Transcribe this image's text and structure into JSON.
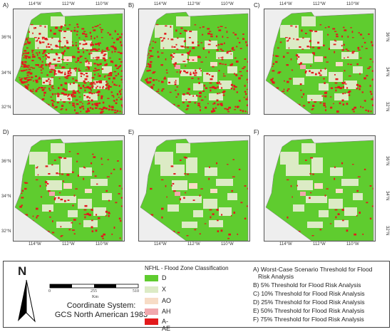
{
  "panels": [
    {
      "letter": "A)",
      "red_density": 1.0
    },
    {
      "letter": "B)",
      "red_density": 0.5
    },
    {
      "letter": "C)",
      "red_density": 0.35
    },
    {
      "letter": "D)",
      "red_density": 0.2
    },
    {
      "letter": "E)",
      "red_density": 0.1
    },
    {
      "letter": "F)",
      "red_density": 0.07
    }
  ],
  "axis_labels": {
    "lon": [
      "114°W",
      "112°W",
      "110°W"
    ],
    "lat": [
      "36°N",
      "34°N",
      "32°N"
    ]
  },
  "north_arrow": {
    "letter": "N"
  },
  "scale_bar": {
    "ticks": [
      "0",
      "255",
      "510"
    ],
    "unit": "Km"
  },
  "coordinate_system": {
    "line1": "Coordinate System:",
    "line2": "GCS North American 1983"
  },
  "legend": {
    "title": "NFHL - Flood Zone Classification",
    "items": [
      {
        "label": "D",
        "color": "#5fcc2f"
      },
      {
        "label": "X",
        "color": "#dcebc5"
      },
      {
        "label": "AO",
        "color": "#f7dcc6"
      },
      {
        "label": "AH",
        "color": "#f1a8ad"
      },
      {
        "label": "A- AE",
        "color": "#e31a1c"
      }
    ]
  },
  "thresholds": [
    "A) Worst-Case Scenario Threshold for Flood",
    "Risk Analysis",
    "B)  5% Threshold for Flood Risk Analysis",
    "C) 10% Threshold for Flood Risk Analysis",
    "D) 25% Threshold for Flood Risk Analysis",
    "E) 50% Threshold for Flood Risk Analysis",
    "F) 75% Threshold for Flood Risk Analysis"
  ]
}
